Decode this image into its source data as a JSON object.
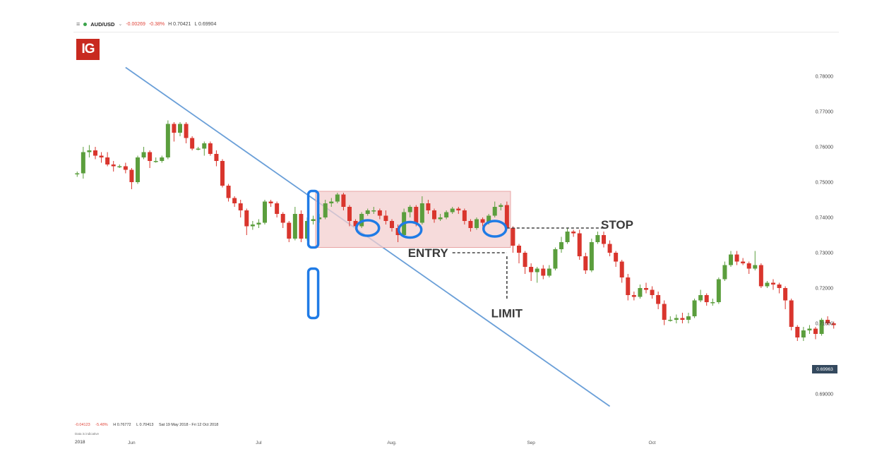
{
  "header": {
    "menu_icon": "hamburger-menu-icon",
    "status_color": "#3aa34a",
    "symbol": "AUD/USD",
    "change": "-0.00269",
    "change_pct": "-0.38%",
    "high": "H 0.70421",
    "low": "L 0.69904"
  },
  "logo": {
    "text": "IG",
    "color": "#c8291f"
  },
  "footer": {
    "change": "-0.04123",
    "change_pct": "-5.48%",
    "high": "H 0.76772",
    "low": "L 0.70413",
    "range": "Sat 19 May 2018 - Fri 12 Oct 2018",
    "indicative": "Data is indicative",
    "year": "2018"
  },
  "price_tag": "0.69963",
  "chart_data": {
    "type": "candlestick",
    "symbol": "AUD/USD",
    "colors": {
      "up": "#5b9e3d",
      "down": "#d9352d",
      "trendline": "#6a9fd8",
      "highlight": "#1f7be6",
      "box": "#e8a5a5"
    },
    "y_axis": {
      "ticks": [
        "0.78000",
        "0.77000",
        "0.76000",
        "0.75000",
        "0.74000",
        "0.73000",
        "0.72000",
        "0.71000",
        "0.69000"
      ],
      "tick_values": [
        0.78,
        0.77,
        0.76,
        0.75,
        0.74,
        0.73,
        0.72,
        0.71,
        0.69
      ],
      "range": [
        0.6858,
        0.7889
      ]
    },
    "x_axis": {
      "ticks": [
        "Jun",
        "Jul",
        "Aug.",
        "Sep",
        "Oct"
      ]
    },
    "candles": [
      [
        "2018-05-21",
        0.7525,
        0.7525,
        0.753,
        0.7515
      ],
      [
        "2018-05-22",
        0.7525,
        0.7585,
        0.76,
        0.751
      ],
      [
        "2018-05-23",
        0.7585,
        0.759,
        0.7605,
        0.757
      ],
      [
        "2018-05-24",
        0.759,
        0.7575,
        0.76,
        0.7565
      ],
      [
        "2018-05-25",
        0.7575,
        0.757,
        0.7585,
        0.7555
      ],
      [
        "2018-05-28",
        0.757,
        0.755,
        0.7585,
        0.7545
      ],
      [
        "2018-05-29",
        0.755,
        0.7545,
        0.756,
        0.753
      ],
      [
        "2018-05-30",
        0.7545,
        0.7545,
        0.755,
        0.754
      ],
      [
        "2018-05-31",
        0.7545,
        0.7535,
        0.7555,
        0.7525
      ],
      [
        "2018-06-01",
        0.7535,
        0.75,
        0.754,
        0.748
      ],
      [
        "2018-06-04",
        0.75,
        0.757,
        0.7575,
        0.7495
      ],
      [
        "2018-06-05",
        0.757,
        0.7585,
        0.76,
        0.7565
      ],
      [
        "2018-06-06",
        0.7585,
        0.756,
        0.759,
        0.754
      ],
      [
        "2018-06-07",
        0.756,
        0.756,
        0.757,
        0.7555
      ],
      [
        "2018-06-08",
        0.756,
        0.757,
        0.7575,
        0.7555
      ],
      [
        "2018-06-11",
        0.757,
        0.7665,
        0.7675,
        0.7565
      ],
      [
        "2018-06-12",
        0.7665,
        0.764,
        0.767,
        0.7615
      ],
      [
        "2018-06-13",
        0.764,
        0.7665,
        0.767,
        0.763
      ],
      [
        "2018-06-14",
        0.7665,
        0.7625,
        0.767,
        0.761
      ],
      [
        "2018-06-15",
        0.7625,
        0.7595,
        0.763,
        0.759
      ],
      [
        "2018-06-18",
        0.7595,
        0.7595,
        0.76,
        0.759
      ],
      [
        "2018-06-19",
        0.7595,
        0.761,
        0.7615,
        0.7575
      ],
      [
        "2018-06-20",
        0.761,
        0.758,
        0.7615,
        0.7575
      ],
      [
        "2018-06-21",
        0.758,
        0.756,
        0.759,
        0.7545
      ],
      [
        "2018-06-22",
        0.756,
        0.749,
        0.7565,
        0.7485
      ],
      [
        "2018-06-25",
        0.749,
        0.7455,
        0.7495,
        0.7445
      ],
      [
        "2018-06-26",
        0.7455,
        0.744,
        0.746,
        0.743
      ],
      [
        "2018-06-27",
        0.744,
        0.742,
        0.745,
        0.74
      ],
      [
        "2018-06-28",
        0.742,
        0.7375,
        0.7425,
        0.735
      ],
      [
        "2018-06-29",
        0.7375,
        0.738,
        0.739,
        0.7365
      ],
      [
        "2018-07-02",
        0.738,
        0.7385,
        0.7395,
        0.737
      ],
      [
        "2018-07-03",
        0.7385,
        0.7445,
        0.745,
        0.738
      ],
      [
        "2018-07-04",
        0.7445,
        0.744,
        0.745,
        0.743
      ],
      [
        "2018-07-05",
        0.744,
        0.741,
        0.7445,
        0.74
      ],
      [
        "2018-07-06",
        0.741,
        0.7385,
        0.7415,
        0.737
      ],
      [
        "2018-07-09",
        0.7385,
        0.734,
        0.739,
        0.733
      ],
      [
        "2018-07-10",
        0.734,
        0.741,
        0.743,
        0.7335
      ],
      [
        "2018-07-11",
        0.741,
        0.734,
        0.742,
        0.733
      ],
      [
        "2018-07-12",
        0.734,
        0.739,
        0.74,
        0.7335
      ],
      [
        "2018-07-13",
        0.739,
        0.7395,
        0.7405,
        0.738
      ],
      [
        "2018-07-16",
        0.7395,
        0.74,
        0.741,
        0.7385
      ],
      [
        "2018-07-17",
        0.74,
        0.744,
        0.745,
        0.7395
      ],
      [
        "2018-07-18",
        0.744,
        0.7445,
        0.7455,
        0.743
      ],
      [
        "2018-07-19",
        0.7445,
        0.7465,
        0.747,
        0.744
      ],
      [
        "2018-07-20",
        0.7465,
        0.743,
        0.747,
        0.742
      ],
      [
        "2018-07-23",
        0.743,
        0.739,
        0.7435,
        0.7375
      ],
      [
        "2018-07-24",
        0.739,
        0.7375,
        0.7395,
        0.7365
      ],
      [
        "2018-07-25",
        0.7375,
        0.741,
        0.7415,
        0.737
      ],
      [
        "2018-07-26",
        0.741,
        0.742,
        0.7425,
        0.7405
      ],
      [
        "2018-07-27",
        0.742,
        0.742,
        0.743,
        0.741
      ],
      [
        "2018-07-30",
        0.742,
        0.7405,
        0.7425,
        0.7395
      ],
      [
        "2018-07-31",
        0.7405,
        0.739,
        0.742,
        0.738
      ],
      [
        "2018-08-01",
        0.739,
        0.737,
        0.7395,
        0.736
      ],
      [
        "2018-08-02",
        0.737,
        0.735,
        0.738,
        0.733
      ],
      [
        "2018-08-03",
        0.735,
        0.7415,
        0.7425,
        0.7345
      ],
      [
        "2018-08-06",
        0.7415,
        0.743,
        0.7435,
        0.74
      ],
      [
        "2018-08-07",
        0.743,
        0.7385,
        0.7435,
        0.7375
      ],
      [
        "2018-08-08",
        0.7385,
        0.744,
        0.746,
        0.738
      ],
      [
        "2018-08-09",
        0.744,
        0.742,
        0.745,
        0.741
      ],
      [
        "2018-08-10",
        0.742,
        0.7395,
        0.7425,
        0.7385
      ],
      [
        "2018-08-13",
        0.7395,
        0.74,
        0.741,
        0.739
      ],
      [
        "2018-08-14",
        0.74,
        0.7415,
        0.742,
        0.7395
      ],
      [
        "2018-08-15",
        0.7415,
        0.7425,
        0.743,
        0.741
      ],
      [
        "2018-08-16",
        0.7425,
        0.742,
        0.743,
        0.741
      ],
      [
        "2018-08-17",
        0.742,
        0.739,
        0.7425,
        0.738
      ],
      [
        "2018-08-20",
        0.739,
        0.737,
        0.7395,
        0.736
      ],
      [
        "2018-08-21",
        0.737,
        0.7395,
        0.74,
        0.7365
      ],
      [
        "2018-08-22",
        0.7395,
        0.7385,
        0.74,
        0.7375
      ],
      [
        "2018-08-23",
        0.7385,
        0.7405,
        0.741,
        0.738
      ],
      [
        "2018-08-24",
        0.7405,
        0.743,
        0.7445,
        0.74
      ],
      [
        "2018-08-27",
        0.743,
        0.7435,
        0.744,
        0.742
      ],
      [
        "2018-08-28",
        0.7435,
        0.737,
        0.7445,
        0.7365
      ],
      [
        "2018-08-29",
        0.737,
        0.732,
        0.7375,
        0.73
      ],
      [
        "2018-08-30",
        0.732,
        0.73,
        0.7325,
        0.727
      ],
      [
        "2018-08-31",
        0.73,
        0.726,
        0.7305,
        0.724
      ],
      [
        "2018-09-03",
        0.726,
        0.7245,
        0.727,
        0.722
      ],
      [
        "2018-09-04",
        0.7245,
        0.7255,
        0.726,
        0.7215
      ],
      [
        "2018-09-05",
        0.7255,
        0.7235,
        0.7265,
        0.7225
      ],
      [
        "2018-09-06",
        0.7235,
        0.7255,
        0.7265,
        0.723
      ],
      [
        "2018-09-07",
        0.7255,
        0.731,
        0.7315,
        0.725
      ],
      [
        "2018-09-10",
        0.731,
        0.733,
        0.7345,
        0.73
      ],
      [
        "2018-09-11",
        0.733,
        0.736,
        0.737,
        0.7325
      ],
      [
        "2018-09-12",
        0.736,
        0.7355,
        0.7365,
        0.7345
      ],
      [
        "2018-09-13",
        0.7355,
        0.729,
        0.7365,
        0.728
      ],
      [
        "2018-09-14",
        0.729,
        0.725,
        0.73,
        0.724
      ],
      [
        "2018-09-17",
        0.725,
        0.733,
        0.734,
        0.7245
      ],
      [
        "2018-09-18",
        0.733,
        0.735,
        0.736,
        0.7325
      ],
      [
        "2018-09-19",
        0.735,
        0.7325,
        0.736,
        0.7315
      ],
      [
        "2018-09-20",
        0.7325,
        0.73,
        0.7335,
        0.729
      ],
      [
        "2018-09-21",
        0.73,
        0.7275,
        0.7305,
        0.726
      ],
      [
        "2018-09-24",
        0.7275,
        0.723,
        0.728,
        0.7215
      ],
      [
        "2018-09-25",
        0.723,
        0.718,
        0.724,
        0.7165
      ],
      [
        "2018-09-26",
        0.718,
        0.7175,
        0.719,
        0.7165
      ],
      [
        "2018-09-27",
        0.7175,
        0.72,
        0.721,
        0.717
      ],
      [
        "2018-09-28",
        0.72,
        0.7195,
        0.7215,
        0.7185
      ],
      [
        "2018-10-01",
        0.7195,
        0.718,
        0.7205,
        0.717
      ],
      [
        "2018-10-02",
        0.718,
        0.7155,
        0.719,
        0.714
      ],
      [
        "2018-10-03",
        0.7155,
        0.711,
        0.7165,
        0.7095
      ],
      [
        "2018-10-04",
        0.711,
        0.711,
        0.712,
        0.7105
      ],
      [
        "2018-10-05",
        0.711,
        0.7115,
        0.7125,
        0.71
      ],
      [
        "2018-10-08",
        0.7115,
        0.711,
        0.713,
        0.71
      ],
      [
        "2018-10-09",
        0.711,
        0.712,
        0.713,
        0.71
      ],
      [
        "2018-10-10",
        0.712,
        0.7165,
        0.717,
        0.7115
      ],
      [
        "2018-10-11",
        0.7165,
        0.718,
        0.7195,
        0.716
      ],
      [
        "2018-10-12",
        0.718,
        0.716,
        0.7185,
        0.715
      ],
      [
        "2018-10-15",
        0.716,
        0.716,
        0.717,
        0.715
      ],
      [
        "2018-10-16",
        0.716,
        0.7225,
        0.723,
        0.7155
      ],
      [
        "2018-10-17",
        0.7225,
        0.7265,
        0.7275,
        0.722
      ],
      [
        "2018-10-18",
        0.7265,
        0.7295,
        0.7305,
        0.726
      ],
      [
        "2018-10-19",
        0.7295,
        0.7275,
        0.7305,
        0.7265
      ],
      [
        "2018-10-22",
        0.7275,
        0.727,
        0.7285,
        0.7265
      ],
      [
        "2018-10-23",
        0.727,
        0.7255,
        0.7275,
        0.724
      ],
      [
        "2018-10-24",
        0.7255,
        0.7265,
        0.7305,
        0.725
      ],
      [
        "2018-10-25",
        0.7265,
        0.7205,
        0.727,
        0.72
      ],
      [
        "2018-10-26",
        0.7205,
        0.7215,
        0.722,
        0.72
      ],
      [
        "2018-10-29",
        0.7215,
        0.721,
        0.7225,
        0.7195
      ],
      [
        "2018-10-30",
        0.721,
        0.72,
        0.7215,
        0.7185
      ],
      [
        "2018-10-31",
        0.72,
        0.7165,
        0.7205,
        0.714
      ],
      [
        "2018-11-01",
        0.7165,
        0.709,
        0.717,
        0.708
      ],
      [
        "2018-11-02",
        0.709,
        0.706,
        0.7095,
        0.705
      ],
      [
        "2018-11-05",
        0.706,
        0.708,
        0.709,
        0.705
      ],
      [
        "2018-11-06",
        0.708,
        0.7085,
        0.7095,
        0.707
      ],
      [
        "2018-11-07",
        0.7085,
        0.707,
        0.709,
        0.7055
      ],
      [
        "2018-11-08",
        0.707,
        0.711,
        0.7115,
        0.7065
      ],
      [
        "2018-11-09",
        0.711,
        0.71,
        0.712,
        0.7095
      ],
      [
        "2018-11-12",
        0.71,
        0.7095,
        0.7105,
        0.7085
      ]
    ],
    "trendline": {
      "from": [
        "2018-05-31",
        0.7825
      ],
      "to": [
        "2018-09-20",
        0.6865
      ]
    },
    "range_box": {
      "from": "2018-07-16",
      "to": "2018-08-28",
      "top": 0.7474,
      "bottom": 0.7315
    },
    "levels": [
      {
        "label": "STOP",
        "value": 0.737,
        "from": "2018-08-28",
        "to": "2018-09-19"
      },
      {
        "label": "ENTRY",
        "value": 0.73,
        "from": "2018-08-15",
        "to": "2018-08-28"
      }
    ],
    "limit": {
      "label": "LIMIT",
      "date": "2018-08-28",
      "from": 0.729,
      "to": 0.7165
    },
    "highlights": [
      {
        "shape": "rect",
        "date": "2018-07-13",
        "top": 0.7475,
        "bottom": 0.7315
      },
      {
        "shape": "rect",
        "date": "2018-07-13",
        "top": 0.7255,
        "bottom": 0.7115
      },
      {
        "shape": "ellipse",
        "date": "2018-07-26",
        "value": 0.737
      },
      {
        "shape": "ellipse",
        "date": "2018-08-06",
        "value": 0.7365
      },
      {
        "shape": "ellipse",
        "date": "2018-08-24",
        "value": 0.7368
      }
    ]
  }
}
